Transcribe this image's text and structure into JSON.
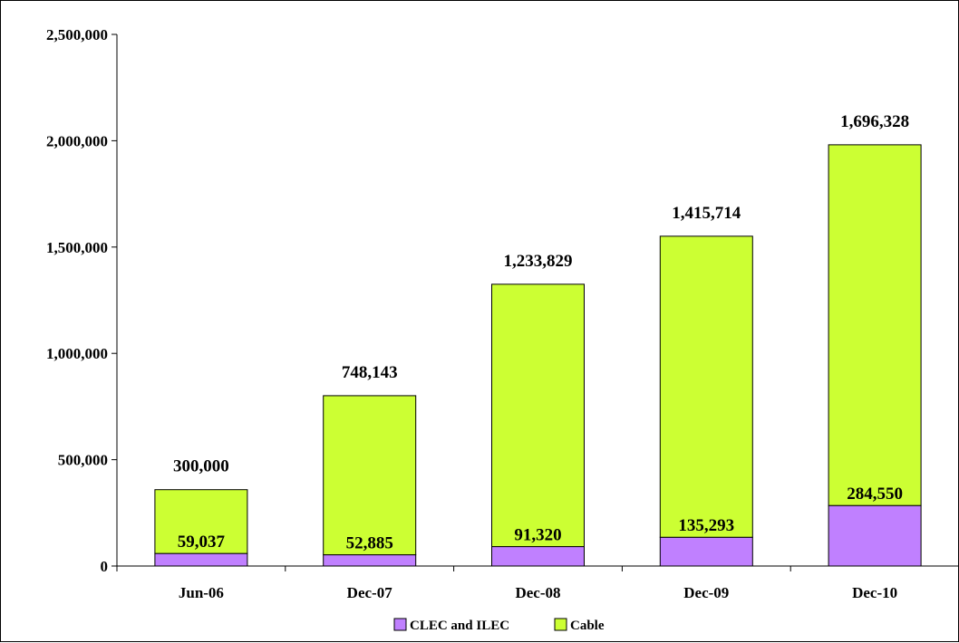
{
  "chart_data": {
    "type": "bar",
    "stacked": true,
    "categories": [
      "Jun-06",
      "Dec-07",
      "Dec-08",
      "Dec-09",
      "Dec-10"
    ],
    "series": [
      {
        "name": "CLEC and ILEC",
        "color": "#c080ff",
        "values": [
          59037,
          52885,
          91320,
          135293,
          284550
        ],
        "labels": [
          "59,037",
          "52,885",
          "91,320",
          "135,293",
          "284,550"
        ]
      },
      {
        "name": "Cable",
        "color": "#ccff33",
        "values": [
          300000,
          748143,
          1233829,
          1415714,
          1696328
        ],
        "labels": [
          "300,000",
          "748,143",
          "1,233,829",
          "1,415,714",
          "1,696,328"
        ]
      }
    ],
    "yticks": [
      {
        "value": 0,
        "label": "0"
      },
      {
        "value": 500000,
        "label": "500,000"
      },
      {
        "value": 1000000,
        "label": "1,000,000"
      },
      {
        "value": 1500000,
        "label": "1,500,000"
      },
      {
        "value": 2000000,
        "label": "2,000,000"
      },
      {
        "value": 2500000,
        "label": "2,500,000"
      }
    ],
    "ylim": [
      0,
      2500000
    ],
    "grid": false,
    "legend_position": "bottom",
    "title": "",
    "xlabel": "",
    "ylabel": ""
  }
}
